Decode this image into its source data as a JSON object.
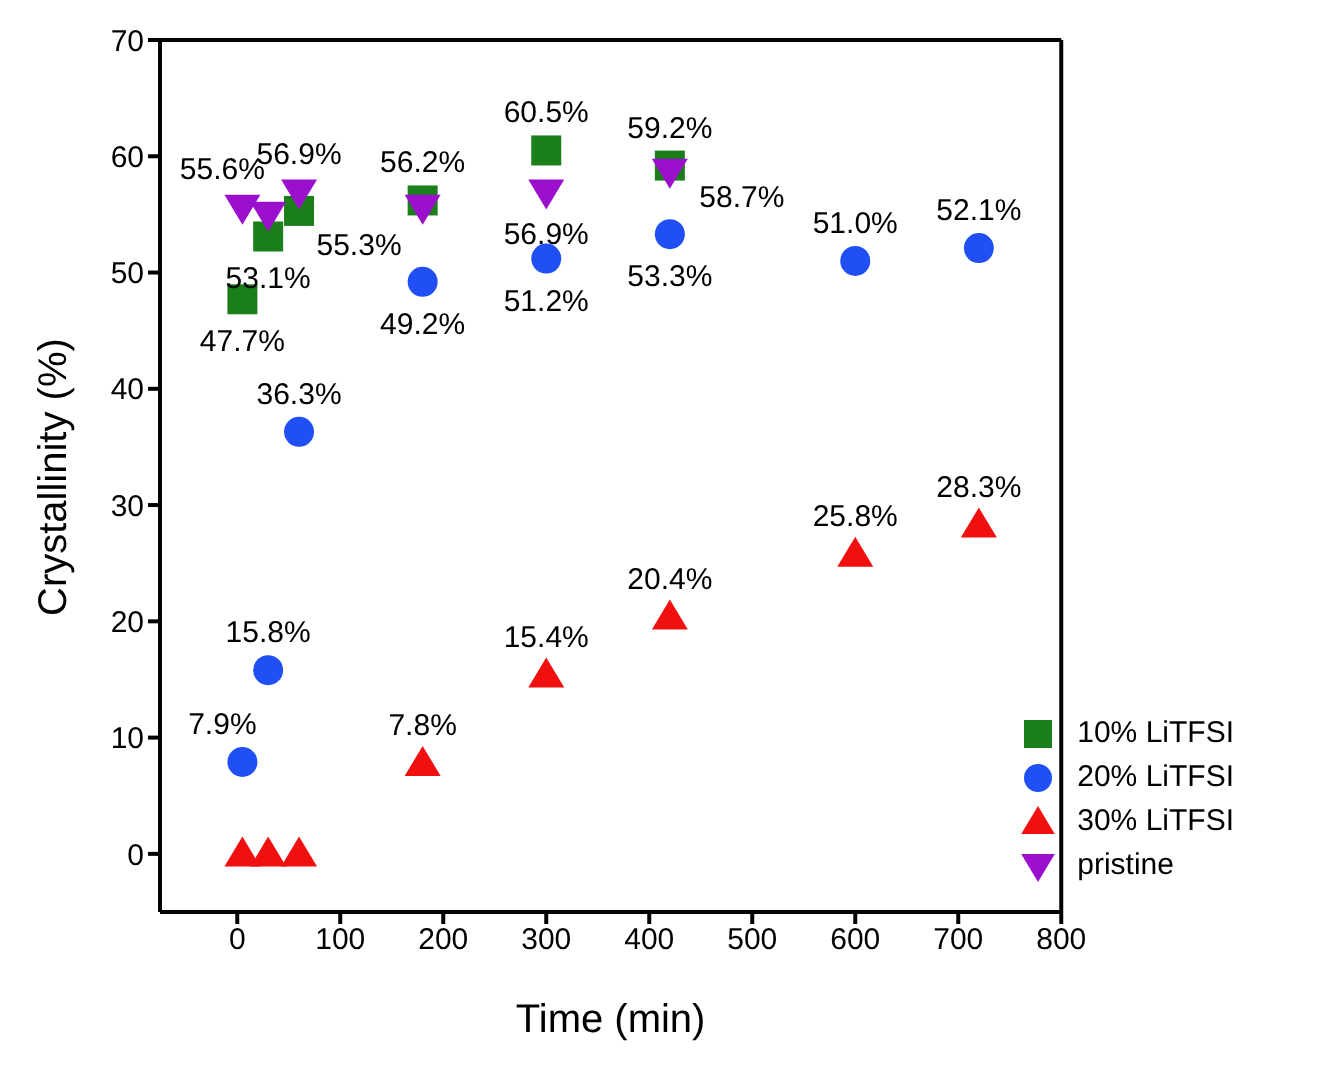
{
  "chart_data": {
    "type": "scatter",
    "xlabel": "Time (min)",
    "ylabel": "Crystallinity (%)",
    "xlim": [
      -75,
      800
    ],
    "xticks": [
      0,
      100,
      200,
      300,
      400,
      500,
      600,
      700,
      800
    ],
    "ylim": [
      -5,
      70
    ],
    "yticks": [
      0,
      10,
      20,
      30,
      40,
      50,
      60,
      70
    ],
    "grid": false,
    "legend": "bottom right",
    "series": [
      {
        "name": "10% LiTFSI",
        "color": "#1a7f1a",
        "marker": "square",
        "x": [
          5,
          30,
          60,
          180,
          300,
          420
        ],
        "values": [
          47.7,
          53.1,
          55.3,
          56.2,
          60.5,
          59.2
        ],
        "value_labels": [
          "47.7%",
          "53.1%",
          "55.3%",
          "56.2%",
          "60.5%",
          "59.2%"
        ]
      },
      {
        "name": "20% LiTFSI",
        "color": "#1f4ff5",
        "marker": "circle",
        "x": [
          5,
          30,
          60,
          180,
          300,
          420,
          600,
          720
        ],
        "values": [
          7.9,
          15.8,
          36.3,
          49.2,
          51.2,
          53.3,
          51.0,
          52.1
        ],
        "value_labels": [
          "7.9%",
          "15.8%",
          "36.3%",
          "49.2%",
          "51.2%",
          "53.3%",
          "51.0%",
          "52.1%"
        ]
      },
      {
        "name": "30% LiTFSI",
        "color": "#f01010",
        "marker": "triangle",
        "x": [
          5,
          30,
          60,
          180,
          300,
          420,
          600,
          720
        ],
        "values": [
          0,
          0,
          0,
          7.8,
          15.4,
          20.4,
          25.8,
          28.3
        ],
        "value_labels": [
          null,
          null,
          null,
          "7.8%",
          "15.4%",
          "20.4%",
          "25.8%",
          "28.3%"
        ]
      },
      {
        "name": "pristine",
        "color": "#9b10cc",
        "marker": "triangle-down",
        "x": [
          5,
          30,
          60,
          180,
          300,
          420
        ],
        "values": [
          55.6,
          55.0,
          56.9,
          55.6,
          56.9,
          58.7
        ],
        "value_labels": [
          "55.6%",
          null,
          "56.9%",
          null,
          "56.9%",
          "58.7%"
        ]
      }
    ]
  }
}
